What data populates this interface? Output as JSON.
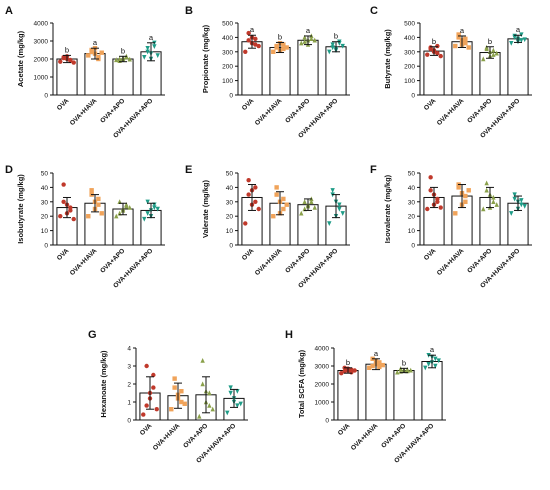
{
  "figure": {
    "groups": [
      "OVA",
      "OVA+HAVA",
      "OVA+APO",
      "OVA+HAVA+APO"
    ],
    "group_colors": [
      "#c0392b",
      "#f0a35a",
      "#8aa04a",
      "#1e9c87"
    ],
    "group_markers": [
      "circle",
      "square",
      "triangle-up",
      "triangle-down"
    ]
  },
  "chart_data": [
    {
      "panel": "A",
      "type": "bar",
      "ylabel": "Acetate (mg/kg)",
      "categories": [
        "OVA",
        "OVA+HAVA",
        "OVA+APO",
        "OVA+HAVA+APO"
      ],
      "values": [
        2000,
        2300,
        2000,
        2400
      ],
      "errors": [
        200,
        300,
        150,
        500
      ],
      "ylim": [
        0,
        4000
      ],
      "yticks": [
        "0",
        "1000",
        "2000",
        "3000",
        "4000"
      ],
      "ytick_values": [
        0,
        1000,
        2000,
        3000,
        4000
      ],
      "sig_letters": [
        "b",
        "a",
        "b",
        "a"
      ],
      "points": [
        [
          1850,
          2100,
          2000,
          1900,
          2050,
          2150,
          1950,
          1800
        ],
        [
          2200,
          2500,
          2300,
          2100,
          2400,
          2600,
          2000,
          2350
        ],
        [
          1950,
          2000,
          2050,
          2100,
          1900,
          2000,
          2150,
          1980
        ],
        [
          2100,
          2600,
          2300,
          2900,
          2400,
          2000,
          2700,
          2200
        ]
      ]
    },
    {
      "panel": "B",
      "type": "bar",
      "ylabel": "Propionate (mg/kg)",
      "categories": [
        "OVA",
        "OVA+HAVA",
        "OVA+APO",
        "OVA+HAVA+APO"
      ],
      "values": [
        370,
        330,
        380,
        335
      ],
      "errors": [
        45,
        35,
        30,
        35
      ],
      "ylim": [
        0,
        500
      ],
      "yticks": [
        "0",
        "100",
        "200",
        "300",
        "400",
        "500"
      ],
      "ytick_values": [
        0,
        100,
        200,
        300,
        400,
        500
      ],
      "sig_letters": [
        "a",
        "b",
        "a",
        "b"
      ],
      "points": [
        [
          300,
          430,
          400,
          350,
          380,
          360,
          390,
          340
        ],
        [
          300,
          340,
          360,
          320,
          330,
          310,
          350,
          330
        ],
        [
          360,
          400,
          380,
          390,
          370,
          350,
          410,
          380
        ],
        [
          300,
          350,
          320,
          360,
          330,
          310,
          370,
          340
        ]
      ]
    },
    {
      "panel": "C",
      "type": "bar",
      "ylabel": "Butyrate (mg/kg)",
      "categories": [
        "OVA",
        "OVA+HAVA",
        "OVA+APO",
        "OVA+HAVA+APO"
      ],
      "values": [
        305,
        370,
        295,
        390
      ],
      "errors": [
        30,
        40,
        40,
        25
      ],
      "ylim": [
        0,
        500
      ],
      "yticks": [
        "0",
        "100",
        "200",
        "300",
        "400",
        "500"
      ],
      "ytick_values": [
        0,
        100,
        200,
        300,
        400,
        500
      ],
      "sig_letters": [
        "b",
        "a",
        "b",
        "a"
      ],
      "points": [
        [
          280,
          330,
          310,
          290,
          320,
          300,
          340,
          270
        ],
        [
          340,
          400,
          380,
          360,
          420,
          350,
          390,
          330
        ],
        [
          250,
          330,
          300,
          280,
          320,
          270,
          310,
          290
        ],
        [
          360,
          410,
          390,
          380,
          400,
          370,
          420,
          385
        ]
      ]
    },
    {
      "panel": "D",
      "type": "bar",
      "ylabel": "Isobutyrate (mg/kg)",
      "categories": [
        "OVA",
        "OVA+HAVA",
        "OVA+APO",
        "OVA+HAVA+APO"
      ],
      "values": [
        26,
        29,
        25,
        24
      ],
      "errors": [
        7,
        6,
        4,
        5
      ],
      "ylim": [
        0,
        50
      ],
      "yticks": [
        "0",
        "10",
        "20",
        "30",
        "40",
        "50"
      ],
      "ytick_values": [
        0,
        10,
        20,
        30,
        40,
        50
      ],
      "sig_letters": [
        "",
        "",
        "",
        ""
      ],
      "points": [
        [
          20,
          42,
          28,
          24,
          30,
          22,
          26,
          18
        ],
        [
          20,
          35,
          30,
          28,
          38,
          25,
          32,
          22
        ],
        [
          20,
          30,
          25,
          28,
          22,
          24,
          27,
          26
        ],
        [
          18,
          30,
          24,
          26,
          22,
          20,
          28,
          25
        ]
      ]
    },
    {
      "panel": "E",
      "type": "bar",
      "ylabel": "Valerate (mg/kg)",
      "categories": [
        "OVA",
        "OVA+HAVA",
        "OVA+APO",
        "OVA+HAVA+APO"
      ],
      "values": [
        33,
        29,
        28,
        27
      ],
      "errors": [
        9,
        8,
        4,
        8
      ],
      "ylim": [
        0,
        50
      ],
      "yticks": [
        "0",
        "10",
        "20",
        "30",
        "40",
        "50"
      ],
      "ytick_values": [
        0,
        10,
        20,
        30,
        40,
        50
      ],
      "sig_letters": [
        "",
        "",
        "",
        ""
      ],
      "points": [
        [
          15,
          45,
          38,
          30,
          35,
          28,
          40,
          25
        ],
        [
          20,
          40,
          30,
          25,
          35,
          22,
          32,
          28
        ],
        [
          22,
          30,
          28,
          32,
          25,
          27,
          30,
          26
        ],
        [
          15,
          38,
          30,
          25,
          35,
          20,
          28,
          22
        ]
      ]
    },
    {
      "panel": "F",
      "type": "bar",
      "ylabel": "Isovalerate (mg/kg)",
      "categories": [
        "OVA",
        "OVA+HAVA",
        "OVA+APO",
        "OVA+HAVA+APO"
      ],
      "values": [
        33,
        34,
        33,
        29
      ],
      "errors": [
        7,
        8,
        7,
        5
      ],
      "ylim": [
        0,
        50
      ],
      "yticks": [
        "0",
        "10",
        "20",
        "30",
        "40",
        "50"
      ],
      "ytick_values": [
        0,
        10,
        20,
        30,
        40,
        50
      ],
      "sig_letters": [
        "",
        "",
        "",
        ""
      ],
      "points": [
        [
          25,
          47,
          35,
          30,
          38,
          28,
          32,
          26
        ],
        [
          22,
          40,
          36,
          30,
          42,
          28,
          34,
          38
        ],
        [
          25,
          43,
          35,
          30,
          38,
          26,
          33,
          28
        ],
        [
          22,
          35,
          30,
          28,
          32,
          25,
          31,
          27
        ]
      ]
    },
    {
      "panel": "G",
      "type": "bar",
      "ylabel": "Hexanoate (mg/kg)",
      "categories": [
        "OVA",
        "OVA+HAVA",
        "OVA+APO",
        "OVA+HAVA+APO"
      ],
      "values": [
        1.5,
        1.35,
        1.4,
        1.2
      ],
      "errors": [
        0.9,
        0.7,
        1.0,
        0.5
      ],
      "ylim": [
        0,
        4
      ],
      "yticks": [
        "0",
        "1",
        "2",
        "3",
        "4"
      ],
      "ytick_values": [
        0,
        1,
        2,
        3,
        4
      ],
      "sig_letters": [
        "",
        "",
        "",
        ""
      ],
      "points": [
        [
          0.3,
          3.0,
          1.2,
          2.5,
          0.8,
          1.5,
          1.8,
          0.6
        ],
        [
          0.6,
          2.3,
          1.4,
          1.0,
          1.8,
          1.2,
          1.6,
          0.9
        ],
        [
          0.2,
          3.3,
          1.6,
          0.8,
          2.0,
          1.0,
          1.5,
          0.6
        ],
        [
          0.4,
          1.8,
          1.2,
          0.8,
          1.5,
          1.0,
          1.6,
          0.9
        ]
      ]
    },
    {
      "panel": "H",
      "type": "bar",
      "ylabel": "Total SCFA (mg/kg)",
      "categories": [
        "OVA",
        "OVA+HAVA",
        "OVA+APO",
        "OVA+HAVA+APO"
      ],
      "values": [
        2750,
        3100,
        2750,
        3250
      ],
      "errors": [
        150,
        300,
        120,
        350
      ],
      "ylim": [
        0,
        4000
      ],
      "yticks": [
        "0",
        "1000",
        "2000",
        "3000",
        "4000"
      ],
      "ytick_values": [
        0,
        1000,
        2000,
        3000,
        4000
      ],
      "sig_letters": [
        "b",
        "a",
        "b",
        "a"
      ],
      "points": [
        [
          2600,
          2900,
          2750,
          2800,
          2700,
          2850,
          2650,
          2750
        ],
        [
          2900,
          3400,
          3100,
          3200,
          3000,
          3300,
          2950,
          3050
        ],
        [
          2650,
          2850,
          2750,
          2800,
          2700,
          2780,
          2720,
          2760
        ],
        [
          2900,
          3600,
          3200,
          3400,
          3100,
          3500,
          3000,
          3300
        ]
      ]
    }
  ]
}
